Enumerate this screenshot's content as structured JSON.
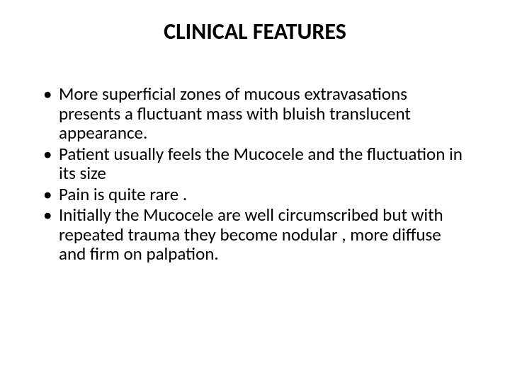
{
  "slide": {
    "title": "CLINICAL FEATURES",
    "bullets": [
      "More superficial zones of mucous extravasations presents a fluctuant mass with bluish translucent appearance.",
      "Patient usually feels the Mucocele and the fluctuation in its size",
      "Pain is quite rare .",
      "Initially the Mucocele are well circumscribed but with repeated trauma they become nodular , more diffuse and firm on palpation."
    ],
    "colors": {
      "background": "#ffffff",
      "text": "#000000",
      "bullet_marker": "#000000"
    },
    "typography": {
      "title_fontsize": 32,
      "title_weight": "bold",
      "body_fontsize": 25,
      "font_family": "Calibri"
    }
  }
}
